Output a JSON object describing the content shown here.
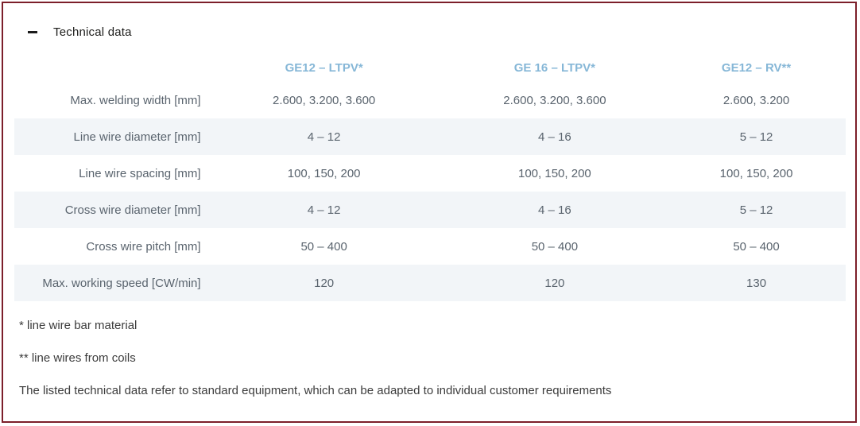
{
  "section": {
    "title": "Technical data"
  },
  "table": {
    "columns": [
      "GE12 – LTPV*",
      "GE 16 – LTPV*",
      "GE12 – RV**"
    ],
    "rows": [
      {
        "label": "Max. welding width [mm]",
        "values": [
          "2.600, 3.200, 3.600",
          "2.600, 3.200, 3.600",
          "2.600, 3.200"
        ]
      },
      {
        "label": "Line wire diameter [mm]",
        "values": [
          "4 – 12",
          "4 – 16",
          "5 – 12"
        ]
      },
      {
        "label": "Line wire spacing [mm]",
        "values": [
          "100, 150, 200",
          "100, 150, 200",
          "100, 150, 200"
        ]
      },
      {
        "label": "Cross wire diameter [mm]",
        "values": [
          "4 – 12",
          "4 – 16",
          "5 – 12"
        ]
      },
      {
        "label": "Cross wire pitch [mm]",
        "values": [
          "50 – 400",
          "50 – 400",
          "50 – 400"
        ]
      },
      {
        "label": "Max. working speed [CW/min]",
        "values": [
          "120",
          "120",
          "130"
        ]
      }
    ]
  },
  "footnotes": [
    "* line wire bar material",
    "** line wires from coils",
    "The listed technical data refer to standard equipment, which can be adapted to individual customer requirements"
  ],
  "colors": {
    "panel_border": "#7c1f2a",
    "header_blue": "#86b7d7",
    "cell_text": "#5a646e",
    "stripe_bg": "#f2f5f8",
    "title_text": "#1d1d1b",
    "footnote_text": "#3c3c3c"
  }
}
